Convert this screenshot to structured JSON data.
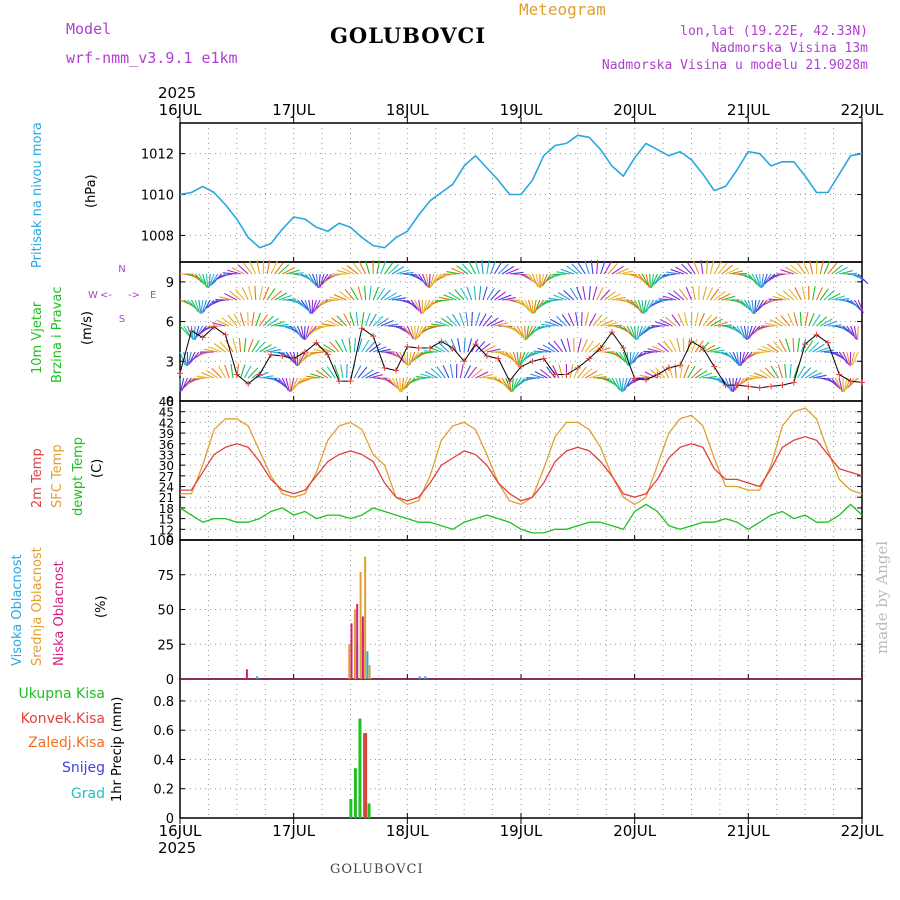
{
  "header": {
    "model_label": "Model",
    "model_name": "wrf-nmm_v3.9.1 e1km",
    "station": "GOLUBOVCI",
    "meteogram_label": "Meteogram",
    "lonlat": "lon,lat (19.22E, 42.33N)",
    "elevation": "Nadmorska Visina 13m",
    "elevation_model": "Nadmorska Visina u modelu 21.9028m",
    "year": "2025",
    "footer_station": "GOLUBOVCI",
    "credit": "made by Angel"
  },
  "colors": {
    "pressure": "#2aa7e0",
    "temp2m": "#e04040",
    "sfc": "#e0a030",
    "dewpt": "#20c020",
    "rain": "#20c020",
    "conv": "#e04040",
    "frozen": "#f07020",
    "snow": "#4040e0",
    "grad": "#20c0c0",
    "high_cloud": "#2aa7e0",
    "mid_cloud": "#e0a030",
    "low_cloud": "#d02080"
  },
  "chart_data": [
    {
      "type": "line",
      "panel": "pressure",
      "ylabel_parts": [
        "Pritisak na nivou mora",
        "(hPa)"
      ],
      "yticks": [
        1008,
        1010,
        1012
      ],
      "ylim": [
        1006.7,
        1013.5
      ],
      "x_ticks": [
        "16JUL",
        "17JUL",
        "18JUL",
        "19JUL",
        "20JUL",
        "21JUL",
        "22JUL"
      ],
      "x_days": [
        0,
        6
      ],
      "x": [
        0,
        0.1,
        0.2,
        0.3,
        0.4,
        0.5,
        0.6,
        0.7,
        0.8,
        0.9,
        1.0,
        1.1,
        1.2,
        1.3,
        1.4,
        1.5,
        1.6,
        1.7,
        1.8,
        1.9,
        2.0,
        2.1,
        2.2,
        2.3,
        2.4,
        2.5,
        2.6,
        2.7,
        2.8,
        2.9,
        3.0,
        3.1,
        3.2,
        3.3,
        3.4,
        3.5,
        3.6,
        3.7,
        3.8,
        3.9,
        4.0,
        4.1,
        4.2,
        4.3,
        4.4,
        4.5,
        4.6,
        4.7,
        4.8,
        4.9,
        5.0,
        5.1,
        5.2,
        5.3,
        5.4,
        5.5,
        5.6,
        5.7,
        5.8,
        5.9,
        6.0
      ],
      "series": [
        {
          "values": [
            1010.0,
            1010.1,
            1010.4,
            1010.1,
            1009.5,
            1008.8,
            1007.9,
            1007.4,
            1007.6,
            1008.3,
            1008.9,
            1008.8,
            1008.4,
            1008.2,
            1008.6,
            1008.4,
            1007.9,
            1007.5,
            1007.4,
            1007.9,
            1008.2,
            1009.0,
            1009.7,
            1010.1,
            1010.5,
            1011.4,
            1011.9,
            1011.3,
            1010.7,
            1010.0,
            1010.0,
            1010.7,
            1011.9,
            1012.4,
            1012.5,
            1012.9,
            1012.8,
            1012.2,
            1011.4,
            1010.9,
            1011.8,
            1012.5,
            1012.2,
            1011.9,
            1012.1,
            1011.7,
            1011.0,
            1010.2,
            1010.4,
            1011.2,
            1012.1,
            1012.0,
            1011.4,
            1011.6,
            1011.6,
            1010.9,
            1010.1,
            1010.1,
            1011.0,
            1011.9,
            1012.0
          ]
        }
      ]
    },
    {
      "type": "barbs",
      "panel": "wind",
      "ylabel_parts": [
        "10m Vjetar",
        "Brzina i Pravac",
        "(m/s)"
      ],
      "compass": [
        "N",
        "W",
        "<-",
        "->",
        "E",
        "S"
      ],
      "yticks": [
        0,
        3,
        6,
        9
      ],
      "ylim": [
        0,
        10.5
      ],
      "x": [
        0,
        0.1,
        0.2,
        0.3,
        0.4,
        0.5,
        0.6,
        0.7,
        0.8,
        0.9,
        1.0,
        1.1,
        1.2,
        1.3,
        1.4,
        1.5,
        1.6,
        1.7,
        1.8,
        1.9,
        2.0,
        2.1,
        2.2,
        2.3,
        2.4,
        2.5,
        2.6,
        2.7,
        2.8,
        2.9,
        3.0,
        3.1,
        3.2,
        3.3,
        3.4,
        3.5,
        3.6,
        3.7,
        3.8,
        3.9,
        4.0,
        4.1,
        4.2,
        4.3,
        4.4,
        4.5,
        4.6,
        4.7,
        4.8,
        4.9,
        5.0,
        5.1,
        5.2,
        5.3,
        5.4,
        5.5,
        5.6,
        5.7,
        5.8,
        5.9,
        6.0
      ],
      "speed": [
        2.1,
        5.3,
        4.8,
        5.6,
        5.0,
        2.0,
        1.3,
        2.0,
        3.5,
        3.4,
        3.2,
        3.7,
        4.4,
        3.5,
        1.5,
        1.5,
        5.5,
        4.9,
        2.5,
        2.3,
        4.1,
        4.0,
        4.0,
        4.5,
        4.0,
        3.0,
        4.3,
        3.4,
        3.2,
        1.5,
        2.6,
        3.0,
        3.2,
        2.0,
        2.0,
        2.5,
        3.2,
        4.0,
        5.2,
        4.0,
        1.7,
        1.6,
        2.0,
        2.5,
        2.7,
        4.5,
        4.0,
        2.6,
        1.2,
        1.2,
        1.1,
        1.0,
        1.1,
        1.2,
        1.4,
        4.3,
        5.0,
        4.4,
        2.0,
        1.5,
        1.4
      ]
    },
    {
      "type": "line",
      "panel": "temperature",
      "ylabel_parts": [
        "2m Temp",
        "SFC Temp",
        "dewpt Temp",
        "(C)"
      ],
      "yticks": [
        9,
        12,
        15,
        18,
        21,
        24,
        27,
        30,
        33,
        36,
        39,
        42,
        45,
        48
      ],
      "ylim": [
        9,
        48
      ],
      "x": [
        0,
        0.1,
        0.2,
        0.3,
        0.4,
        0.5,
        0.6,
        0.7,
        0.8,
        0.9,
        1.0,
        1.1,
        1.2,
        1.3,
        1.4,
        1.5,
        1.6,
        1.7,
        1.8,
        1.9,
        2.0,
        2.1,
        2.2,
        2.3,
        2.4,
        2.5,
        2.6,
        2.7,
        2.8,
        2.9,
        3.0,
        3.1,
        3.2,
        3.3,
        3.4,
        3.5,
        3.6,
        3.7,
        3.8,
        3.9,
        4.0,
        4.1,
        4.2,
        4.3,
        4.4,
        4.5,
        4.6,
        4.7,
        4.8,
        4.9,
        5.0,
        5.1,
        5.2,
        5.3,
        5.4,
        5.5,
        5.6,
        5.7,
        5.8,
        5.9,
        6.0
      ],
      "series": [
        {
          "name": "2m Temp",
          "values": [
            23,
            23,
            28,
            33,
            35,
            36,
            35,
            31,
            26,
            23,
            22,
            23,
            27,
            31,
            33,
            34,
            33,
            31,
            25,
            21,
            20,
            21,
            25,
            30,
            32,
            34,
            33,
            30,
            25,
            22,
            20,
            21,
            25,
            31,
            34,
            35,
            34,
            31,
            27,
            22,
            21,
            22,
            26,
            32,
            35,
            36,
            35,
            29,
            26,
            26,
            25,
            24,
            29,
            35,
            37,
            38,
            37,
            33,
            29,
            28,
            27
          ]
        },
        {
          "name": "SFC Temp",
          "values": [
            22,
            22,
            30,
            40,
            43,
            43,
            41,
            34,
            27,
            22,
            21,
            22,
            28,
            37,
            41,
            42,
            40,
            33,
            30,
            21,
            19,
            20,
            27,
            37,
            41,
            42,
            40,
            33,
            25,
            20,
            19,
            21,
            29,
            38,
            42,
            42,
            40,
            35,
            27,
            21,
            19,
            21,
            30,
            39,
            43,
            44,
            41,
            32,
            24,
            24,
            23,
            23,
            30,
            41,
            45,
            46,
            43,
            34,
            26,
            23,
            22
          ]
        },
        {
          "name": "dewpt Temp",
          "values": [
            18,
            16,
            14,
            15,
            15,
            14,
            14,
            15,
            17,
            18,
            16,
            17,
            15,
            16,
            16,
            15,
            16,
            18,
            17,
            16,
            15,
            14,
            14,
            13,
            12,
            14,
            15,
            16,
            15,
            14,
            12,
            11,
            11,
            12,
            12,
            13,
            14,
            14,
            13,
            12,
            17,
            19,
            17,
            13,
            12,
            13,
            14,
            14,
            15,
            14,
            12,
            14,
            16,
            17,
            15,
            16,
            14,
            14,
            16,
            19,
            16
          ]
        }
      ]
    },
    {
      "type": "bar",
      "panel": "clouds",
      "ylabel_parts": [
        "Visoka Oblacnost",
        "Srednja Oblacnost",
        "Niska Oblacnost",
        "(%)"
      ],
      "yticks": [
        0,
        25,
        50,
        75,
        100
      ],
      "ylim": [
        0,
        100
      ],
      "series": [
        {
          "name": "Visoka Oblacnost",
          "x": [
            0.67,
            1.5,
            1.55,
            1.6,
            1.64,
            2.1,
            2.15
          ],
          "values": [
            2,
            12,
            25,
            35,
            20,
            2,
            2
          ]
        },
        {
          "name": "Srednja Oblacnost",
          "x": [
            1.48,
            1.53,
            1.58,
            1.62,
            1.66
          ],
          "values": [
            25,
            50,
            77,
            88,
            10
          ]
        },
        {
          "name": "Niska Oblacnost",
          "x": [
            0.58,
            1.5,
            1.55,
            1.6
          ],
          "values": [
            7,
            40,
            54,
            45
          ]
        }
      ]
    },
    {
      "type": "bar",
      "panel": "precip",
      "ylabel_parts": [
        "Ukupna Kisa",
        "Konvek.Kisa",
        "Zaledj.Kisa",
        "Snijeg",
        "Grad",
        "1hr Precip (mm)"
      ],
      "yticks": [
        0,
        0.2,
        0.4,
        0.6,
        0.8
      ],
      "ytick_labels": [
        "0",
        "0.2",
        "0.4",
        "0.6",
        "0.8"
      ],
      "ylim": [
        0,
        0.95
      ],
      "series": [
        {
          "name": "Ukupna Kisa",
          "x": [
            1.49,
            1.53,
            1.57,
            1.61,
            1.65
          ],
          "values": [
            0.13,
            0.34,
            0.68,
            0.58,
            0.1
          ]
        },
        {
          "name": "Konvek.Kisa",
          "x": [
            1.62
          ],
          "values": [
            0.58
          ]
        }
      ]
    }
  ]
}
